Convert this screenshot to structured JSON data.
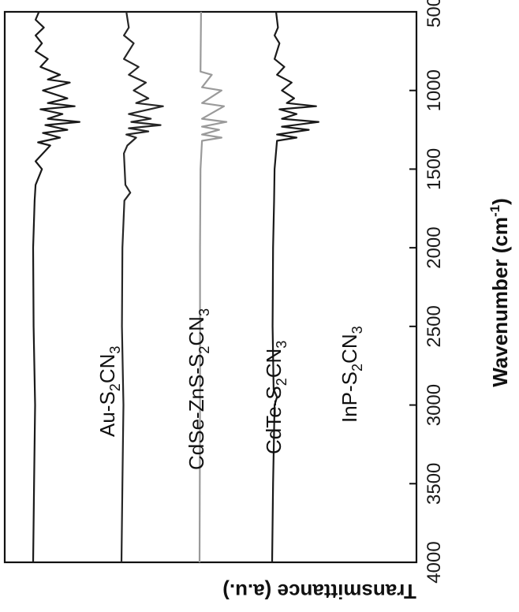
{
  "chart_data": {
    "type": "line",
    "orientation": "rotated-90-clockwise",
    "xlabel": "Wavenumber (cm",
    "xlabel_superscript": "-1",
    "xlabel_close": ")",
    "ylabel": "Transmittance (a.u.)",
    "xlim": [
      500,
      4000
    ],
    "x_ticks": [
      4000,
      3500,
      3000,
      2500,
      2000,
      1500,
      1000,
      500
    ],
    "x_tick_labels": [
      "4000",
      "3500",
      "3000",
      "2500",
      "2000",
      "1500",
      "1000",
      "500"
    ],
    "grid": false,
    "series": [
      {
        "name": "Au-S2CN3",
        "label": {
          "main": "Au-S",
          "sub1": "2",
          "mid": "CN",
          "sub2": "3"
        },
        "color": "#1a1a1a",
        "offset": 0.0,
        "points": [
          [
            4000,
            0
          ],
          [
            3500,
            0.02
          ],
          [
            3000,
            0.04
          ],
          [
            2500,
            0.01
          ],
          [
            2000,
            0
          ],
          [
            1700,
            0.03
          ],
          [
            1600,
            0.05
          ],
          [
            1500,
            0.18
          ],
          [
            1450,
            0.05
          ],
          [
            1350,
            0.35
          ],
          [
            1330,
            0.1
          ],
          [
            1300,
            0.55
          ],
          [
            1270,
            0.2
          ],
          [
            1250,
            0.7
          ],
          [
            1220,
            0.25
          ],
          [
            1200,
            0.95
          ],
          [
            1180,
            0.3
          ],
          [
            1150,
            0.6
          ],
          [
            1120,
            0.15
          ],
          [
            1100,
            0.85
          ],
          [
            1080,
            0.3
          ],
          [
            1050,
            0.7
          ],
          [
            1000,
            0.2
          ],
          [
            950,
            0.75
          ],
          [
            930,
            0.3
          ],
          [
            900,
            0.55
          ],
          [
            850,
            0.15
          ],
          [
            800,
            0.3
          ],
          [
            750,
            0.05
          ],
          [
            700,
            0.18
          ],
          [
            650,
            0.05
          ],
          [
            600,
            0.22
          ],
          [
            550,
            0.05
          ],
          [
            500,
            0.12
          ]
        ]
      },
      {
        "name": "CdSe-ZnS-S2CN3",
        "label": {
          "main": "CdSe-ZnS-S",
          "sub1": "2",
          "mid": "CN",
          "sub2": "3"
        },
        "color": "#262626",
        "offset": 1.0,
        "points": [
          [
            4000,
            0
          ],
          [
            3500,
            0.02
          ],
          [
            3000,
            0.04
          ],
          [
            2500,
            0.01
          ],
          [
            2000,
            0.02
          ],
          [
            1700,
            0.06
          ],
          [
            1650,
            0.18
          ],
          [
            1600,
            0.08
          ],
          [
            1400,
            0.05
          ],
          [
            1350,
            0.12
          ],
          [
            1300,
            0.3
          ],
          [
            1280,
            0.1
          ],
          [
            1260,
            0.55
          ],
          [
            1240,
            0.15
          ],
          [
            1220,
            0.8
          ],
          [
            1200,
            0.2
          ],
          [
            1180,
            0.6
          ],
          [
            1150,
            0.15
          ],
          [
            1100,
            0.85
          ],
          [
            1080,
            0.3
          ],
          [
            1050,
            0.55
          ],
          [
            1000,
            0.25
          ],
          [
            950,
            0.5
          ],
          [
            900,
            0.15
          ],
          [
            850,
            0.35
          ],
          [
            800,
            0.05
          ],
          [
            700,
            0.25
          ],
          [
            650,
            0.05
          ],
          [
            600,
            0.15
          ],
          [
            500,
            0.1
          ]
        ]
      },
      {
        "name": "CdTe-S2CN3",
        "label": {
          "main": "CdTe-S",
          "sub1": "2",
          "mid": "CN",
          "sub2": "3"
        },
        "color": "#9a9a9a",
        "offset": 2.0,
        "points": [
          [
            4000,
            0
          ],
          [
            3000,
            0.01
          ],
          [
            2000,
            0.01
          ],
          [
            1500,
            0.02
          ],
          [
            1320,
            0.05
          ],
          [
            1300,
            0.45
          ],
          [
            1280,
            0.05
          ],
          [
            1250,
            0.4
          ],
          [
            1230,
            0.05
          ],
          [
            1200,
            0.55
          ],
          [
            1180,
            0.05
          ],
          [
            1100,
            0.5
          ],
          [
            1080,
            0.05
          ],
          [
            1000,
            0.45
          ],
          [
            980,
            0.05
          ],
          [
            900,
            0.25
          ],
          [
            880,
            0.02
          ],
          [
            500,
            0.03
          ]
        ]
      },
      {
        "name": "InP-S2CN3",
        "label": {
          "main": "InP-S",
          "sub1": "2",
          "mid": "CN",
          "sub2": "3"
        },
        "color": "#1a1a1a",
        "offset": 3.0,
        "points": [
          [
            4000,
            0
          ],
          [
            3500,
            0.02
          ],
          [
            3000,
            0.05
          ],
          [
            2950,
            0.1
          ],
          [
            2900,
            0.03
          ],
          [
            2500,
            0.01
          ],
          [
            2000,
            0.02
          ],
          [
            1700,
            0.04
          ],
          [
            1500,
            0.05
          ],
          [
            1320,
            0.1
          ],
          [
            1300,
            0.5
          ],
          [
            1280,
            0.1
          ],
          [
            1250,
            0.75
          ],
          [
            1230,
            0.2
          ],
          [
            1200,
            0.95
          ],
          [
            1180,
            0.2
          ],
          [
            1150,
            0.5
          ],
          [
            1120,
            0.15
          ],
          [
            1100,
            0.9
          ],
          [
            1080,
            0.3
          ],
          [
            1050,
            0.45
          ],
          [
            1000,
            0.2
          ],
          [
            950,
            0.4
          ],
          [
            900,
            0.1
          ],
          [
            850,
            0.25
          ],
          [
            800,
            0.05
          ],
          [
            700,
            0.15
          ],
          [
            650,
            0.05
          ],
          [
            600,
            0.12
          ],
          [
            500,
            0.08
          ]
        ]
      }
    ]
  }
}
